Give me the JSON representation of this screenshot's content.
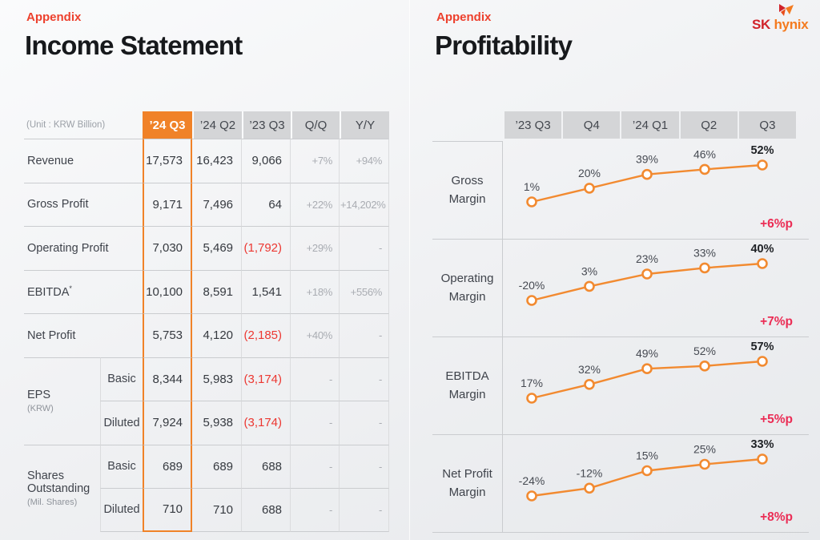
{
  "slide_left": {
    "eyebrow": "Appendix",
    "title": "Income Statement",
    "unit_label": "(Unit : KRW Billion)",
    "columns": [
      "’24 Q3",
      "’24 Q2",
      "’23 Q3",
      "Q/Q",
      "Y/Y"
    ],
    "highlight_column": "’24 Q3",
    "rows": [
      {
        "label": "Revenue",
        "values": [
          "17,573",
          "16,423",
          "9,066",
          "+7%",
          "+94%"
        ]
      },
      {
        "label": "Gross Profit",
        "values": [
          "9,171",
          "7,496",
          "64",
          "+22%",
          "+14,202%"
        ]
      },
      {
        "label": "Operating Profit",
        "values": [
          "7,030",
          "5,469",
          "(1,792)",
          "+29%",
          "-"
        ]
      },
      {
        "label": "EBITDA",
        "label_sup": "*",
        "values": [
          "10,100",
          "8,591",
          "1,541",
          "+18%",
          "+556%"
        ]
      },
      {
        "label": "Net Profit",
        "values": [
          "5,753",
          "4,120",
          "(2,185)",
          "+40%",
          "-"
        ]
      },
      {
        "group": "EPS",
        "group_sub": "(KRW)",
        "sub": "Basic",
        "values": [
          "8,344",
          "5,983",
          "(3,174)",
          "-",
          "-"
        ]
      },
      {
        "sub": "Diluted",
        "values": [
          "7,924",
          "5,938",
          "(3,174)",
          "-",
          "-"
        ]
      },
      {
        "group": "Shares Outstanding",
        "group_sub": "(Mil. Shares)",
        "sub": "Basic",
        "values": [
          "689",
          "689",
          "688",
          "-",
          "-"
        ]
      },
      {
        "sub": "Diluted",
        "values": [
          "710",
          "710",
          "688",
          "-",
          "-"
        ]
      }
    ]
  },
  "slide_right": {
    "eyebrow": "Appendix",
    "title": "Profitability",
    "columns": [
      "’23 Q3",
      "Q4",
      "’24 Q1",
      "Q2",
      "Q3"
    ]
  },
  "logo": {
    "sk": "SK",
    "hynix": "hynix"
  },
  "colors": {
    "accent_orange": "#F28A30",
    "header_grey": "#D4D5D7",
    "highlight_border": "#F08228",
    "delta_pink": "#EB2D55",
    "negative_red": "#EC3731",
    "eyebrow_red": "#ED402D",
    "logo_red": "#D1232A",
    "logo_orange": "#F47B20"
  },
  "chart_data": [
    {
      "type": "line",
      "title": "Gross Margin",
      "categories": [
        "’23 Q3",
        "Q4",
        "’24 Q1",
        "Q2",
        "Q3"
      ],
      "values": [
        1,
        20,
        39,
        46,
        52
      ],
      "value_labels": [
        "1%",
        "20%",
        "39%",
        "46%",
        "52%"
      ],
      "unit": "%",
      "delta_label": "+6%p",
      "line_color": "#F28A30",
      "grid": false,
      "legend": "none"
    },
    {
      "type": "line",
      "title": "Operating Margin",
      "categories": [
        "’23 Q3",
        "Q4",
        "’24 Q1",
        "Q2",
        "Q3"
      ],
      "values": [
        -20,
        3,
        23,
        33,
        40
      ],
      "value_labels": [
        "-20%",
        "3%",
        "23%",
        "33%",
        "40%"
      ],
      "unit": "%",
      "delta_label": "+7%p",
      "line_color": "#F28A30",
      "grid": false,
      "legend": "none"
    },
    {
      "type": "line",
      "title": "EBITDA Margin",
      "categories": [
        "’23 Q3",
        "Q4",
        "’24 Q1",
        "Q2",
        "Q3"
      ],
      "values": [
        17,
        32,
        49,
        52,
        57
      ],
      "value_labels": [
        "17%",
        "32%",
        "49%",
        "52%",
        "57%"
      ],
      "unit": "%",
      "delta_label": "+5%p",
      "line_color": "#F28A30",
      "grid": false,
      "legend": "none"
    },
    {
      "type": "line",
      "title": "Net Profit Margin",
      "categories": [
        "’23 Q3",
        "Q4",
        "’24 Q1",
        "Q2",
        "Q3"
      ],
      "values": [
        -24,
        -12,
        15,
        25,
        33
      ],
      "value_labels": [
        "-24%",
        "-12%",
        "15%",
        "25%",
        "33%"
      ],
      "unit": "%",
      "delta_label": "+8%p",
      "line_color": "#F28A30",
      "grid": false,
      "legend": "none"
    }
  ]
}
